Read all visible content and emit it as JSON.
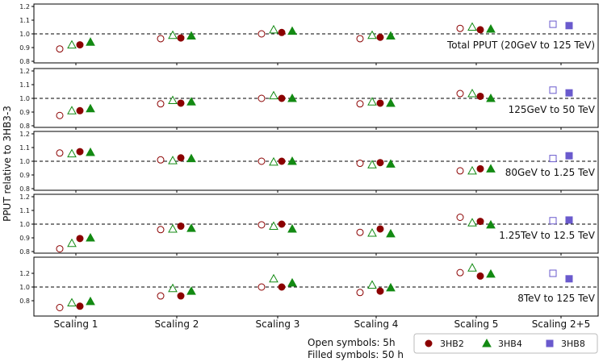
{
  "chart_data": {
    "type": "scatter",
    "ylabel": "PPUT relative to 3HB3-3",
    "categories": [
      "Scaling 1",
      "Scaling 2",
      "Scaling 3",
      "Scaling 4",
      "Scaling 5",
      "Scaling 2+5"
    ],
    "legend": {
      "placement": "bottom-right",
      "entries": [
        {
          "name": "3HB2",
          "marker": "circle",
          "color": "#8b0000"
        },
        {
          "name": "3HB4",
          "marker": "triangle",
          "color": "#138a13"
        },
        {
          "name": "3HB8",
          "marker": "square",
          "color": "#6a5acd"
        }
      ]
    },
    "notes": [
      "Open symbols: 5h",
      "Filled symbols: 50 h"
    ],
    "panels": [
      {
        "title": "Total PPUT (20GeV to 125 TeV)",
        "ylim": [
          0.8,
          1.2
        ],
        "yticks": [
          "0.8",
          "0.9",
          "1.0",
          "1.1",
          "1.2"
        ],
        "reference_line": 1.0,
        "series": [
          {
            "name": "3HB2 5h",
            "marker": "circle",
            "filled": false,
            "values": [
              0.89,
              0.965,
              1.0,
              0.965,
              1.04,
              null
            ]
          },
          {
            "name": "3HB2 50 h",
            "marker": "circle",
            "filled": true,
            "values": [
              0.92,
              0.97,
              1.01,
              0.975,
              1.03,
              null
            ]
          },
          {
            "name": "3HB4 5h",
            "marker": "triangle",
            "filled": false,
            "values": [
              0.92,
              0.99,
              1.03,
              0.99,
              1.05,
              null
            ]
          },
          {
            "name": "3HB4 50 h",
            "marker": "triangle",
            "filled": true,
            "values": [
              0.94,
              0.985,
              1.02,
              0.985,
              1.035,
              null
            ]
          },
          {
            "name": "3HB8 5h",
            "marker": "square",
            "filled": false,
            "values": [
              null,
              null,
              null,
              null,
              null,
              1.07
            ]
          },
          {
            "name": "3HB8 50 h",
            "marker": "square",
            "filled": true,
            "values": [
              null,
              null,
              null,
              null,
              null,
              1.06
            ]
          }
        ]
      },
      {
        "title": "125GeV to 50 TeV",
        "ylim": [
          0.8,
          1.2
        ],
        "yticks": [
          "0.8",
          "0.9",
          "1.0",
          "1.1",
          "1.2"
        ],
        "reference_line": 1.0,
        "series": [
          {
            "name": "3HB2 5h",
            "marker": "circle",
            "filled": false,
            "values": [
              0.875,
              0.96,
              1.0,
              0.96,
              1.035,
              null
            ]
          },
          {
            "name": "3HB2 50 h",
            "marker": "circle",
            "filled": true,
            "values": [
              0.91,
              0.965,
              1.0,
              0.965,
              1.015,
              null
            ]
          },
          {
            "name": "3HB4 5h",
            "marker": "triangle",
            "filled": false,
            "values": [
              0.91,
              0.985,
              1.02,
              0.975,
              1.035,
              null
            ]
          },
          {
            "name": "3HB4 50 h",
            "marker": "triangle",
            "filled": true,
            "values": [
              0.925,
              0.975,
              1.0,
              0.965,
              1.0,
              null
            ]
          },
          {
            "name": "3HB8 5h",
            "marker": "square",
            "filled": false,
            "values": [
              null,
              null,
              null,
              null,
              null,
              1.06
            ]
          },
          {
            "name": "3HB8 50 h",
            "marker": "square",
            "filled": true,
            "values": [
              null,
              null,
              null,
              null,
              null,
              1.04
            ]
          }
        ]
      },
      {
        "title": "80GeV to 1.25 TeV",
        "ylim": [
          0.8,
          1.2
        ],
        "yticks": [
          "0.8",
          "0.9",
          "1.0",
          "1.1",
          "1.2"
        ],
        "reference_line": 1.0,
        "series": [
          {
            "name": "3HB2 5h",
            "marker": "circle",
            "filled": false,
            "values": [
              1.06,
              1.01,
              1.0,
              0.985,
              0.93,
              null
            ]
          },
          {
            "name": "3HB2 50 h",
            "marker": "circle",
            "filled": true,
            "values": [
              1.07,
              1.025,
              1.0,
              0.99,
              0.945,
              null
            ]
          },
          {
            "name": "3HB4 5h",
            "marker": "triangle",
            "filled": false,
            "values": [
              1.055,
              1.005,
              0.995,
              0.975,
              0.93,
              null
            ]
          },
          {
            "name": "3HB4 50 h",
            "marker": "triangle",
            "filled": true,
            "values": [
              1.065,
              1.02,
              1.0,
              0.98,
              0.945,
              null
            ]
          },
          {
            "name": "3HB8 5h",
            "marker": "square",
            "filled": false,
            "values": [
              null,
              null,
              null,
              null,
              null,
              1.02
            ]
          },
          {
            "name": "3HB8 50 h",
            "marker": "square",
            "filled": true,
            "values": [
              null,
              null,
              null,
              null,
              null,
              1.04
            ]
          }
        ]
      },
      {
        "title": "1.25TeV to 12.5 TeV",
        "ylim": [
          0.8,
          1.2
        ],
        "yticks": [
          "0.8",
          "0.9",
          "1.0",
          "1.1",
          "1.2"
        ],
        "reference_line": 1.0,
        "series": [
          {
            "name": "3HB2 5h",
            "marker": "circle",
            "filled": false,
            "values": [
              0.82,
              0.96,
              0.995,
              0.94,
              1.05,
              null
            ]
          },
          {
            "name": "3HB2 50 h",
            "marker": "circle",
            "filled": true,
            "values": [
              0.895,
              0.985,
              1.0,
              0.965,
              1.02,
              null
            ]
          },
          {
            "name": "3HB4 5h",
            "marker": "triangle",
            "filled": false,
            "values": [
              0.86,
              0.965,
              0.985,
              0.935,
              1.01,
              null
            ]
          },
          {
            "name": "3HB4 50 h",
            "marker": "triangle",
            "filled": true,
            "values": [
              0.9,
              0.97,
              0.965,
              0.93,
              0.995,
              null
            ]
          },
          {
            "name": "3HB8 5h",
            "marker": "square",
            "filled": false,
            "values": [
              null,
              null,
              null,
              null,
              null,
              1.025
            ]
          },
          {
            "name": "3HB8 50 h",
            "marker": "square",
            "filled": true,
            "values": [
              null,
              null,
              null,
              null,
              null,
              1.03
            ]
          }
        ]
      },
      {
        "title": "8TeV to 125 TeV",
        "ylim": [
          0.6,
          1.4
        ],
        "yticks": [
          "0.8",
          "1.0",
          "1.2"
        ],
        "reference_line": 1.0,
        "series": [
          {
            "name": "3HB2 5h",
            "marker": "circle",
            "filled": false,
            "values": [
              0.7,
              0.87,
              1.0,
              0.92,
              1.21,
              null
            ]
          },
          {
            "name": "3HB2 50 h",
            "marker": "circle",
            "filled": true,
            "values": [
              0.72,
              0.87,
              1.0,
              0.94,
              1.16,
              null
            ]
          },
          {
            "name": "3HB4 5h",
            "marker": "triangle",
            "filled": false,
            "values": [
              0.77,
              0.98,
              1.12,
              1.03,
              1.28,
              null
            ]
          },
          {
            "name": "3HB4 50 h",
            "marker": "triangle",
            "filled": true,
            "values": [
              0.79,
              0.94,
              1.06,
              0.99,
              1.19,
              null
            ]
          },
          {
            "name": "3HB8 5h",
            "marker": "square",
            "filled": false,
            "values": [
              null,
              null,
              null,
              null,
              null,
              1.2
            ]
          },
          {
            "name": "3HB8 50 h",
            "marker": "square",
            "filled": true,
            "values": [
              null,
              null,
              null,
              null,
              null,
              1.12
            ]
          }
        ]
      }
    ]
  }
}
